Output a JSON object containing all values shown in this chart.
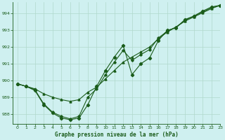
{
  "title": "Graphe pression niveau de la mer (hPa)",
  "background_color": "#cff0f0",
  "grid_color": "#b0d8cc",
  "line_color": "#1a5c1a",
  "xlim": [
    -0.5,
    23
  ],
  "ylim": [
    987.4,
    994.7
  ],
  "yticks": [
    988,
    989,
    990,
    991,
    992,
    993,
    994
  ],
  "xticks": [
    0,
    1,
    2,
    3,
    4,
    5,
    6,
    7,
    8,
    9,
    10,
    11,
    12,
    13,
    14,
    15,
    16,
    17,
    18,
    19,
    20,
    21,
    22,
    23
  ],
  "series1_x": [
    0,
    1,
    2,
    3,
    4,
    5,
    6,
    7,
    8,
    9,
    10,
    11,
    12,
    13,
    14,
    15,
    16,
    17,
    18,
    19,
    20,
    21,
    22,
    23
  ],
  "series1_y": [
    989.8,
    989.65,
    989.4,
    988.55,
    988.05,
    987.75,
    987.65,
    987.75,
    988.55,
    989.65,
    990.6,
    991.4,
    992.1,
    990.35,
    991.0,
    991.35,
    992.4,
    993.0,
    993.15,
    993.65,
    993.85,
    994.15,
    994.4,
    994.5
  ],
  "series2_x": [
    0,
    1,
    2,
    3,
    4,
    5,
    6,
    7,
    8,
    9,
    10,
    11,
    12,
    13,
    14,
    15,
    16,
    17,
    18,
    19,
    20,
    21,
    22,
    23
  ],
  "series2_y": [
    989.8,
    989.65,
    989.5,
    989.2,
    989.0,
    988.85,
    988.75,
    988.85,
    989.3,
    989.6,
    990.1,
    990.6,
    991.1,
    991.4,
    991.7,
    992.0,
    992.5,
    992.9,
    993.2,
    993.55,
    993.8,
    994.05,
    994.3,
    994.5
  ],
  "series3_x": [
    0,
    1,
    2,
    3,
    4,
    5,
    6,
    7,
    8,
    9,
    10,
    11,
    12,
    13,
    14,
    15,
    16,
    17,
    18,
    19,
    20,
    21,
    22,
    23
  ],
  "series3_y": [
    989.8,
    989.65,
    989.45,
    988.6,
    988.1,
    987.85,
    987.7,
    987.85,
    989.0,
    989.5,
    990.35,
    991.1,
    991.8,
    991.2,
    991.55,
    991.85,
    992.55,
    992.95,
    993.2,
    993.6,
    993.85,
    994.1,
    994.35,
    994.5
  ],
  "marker1": "D",
  "marker2": "^",
  "marker3": "D",
  "markersize1": 2.2,
  "markersize2": 2.2,
  "markersize3": 1.8,
  "linewidth": 0.8,
  "title_fontsize": 5.5,
  "tick_fontsize": 4.5
}
